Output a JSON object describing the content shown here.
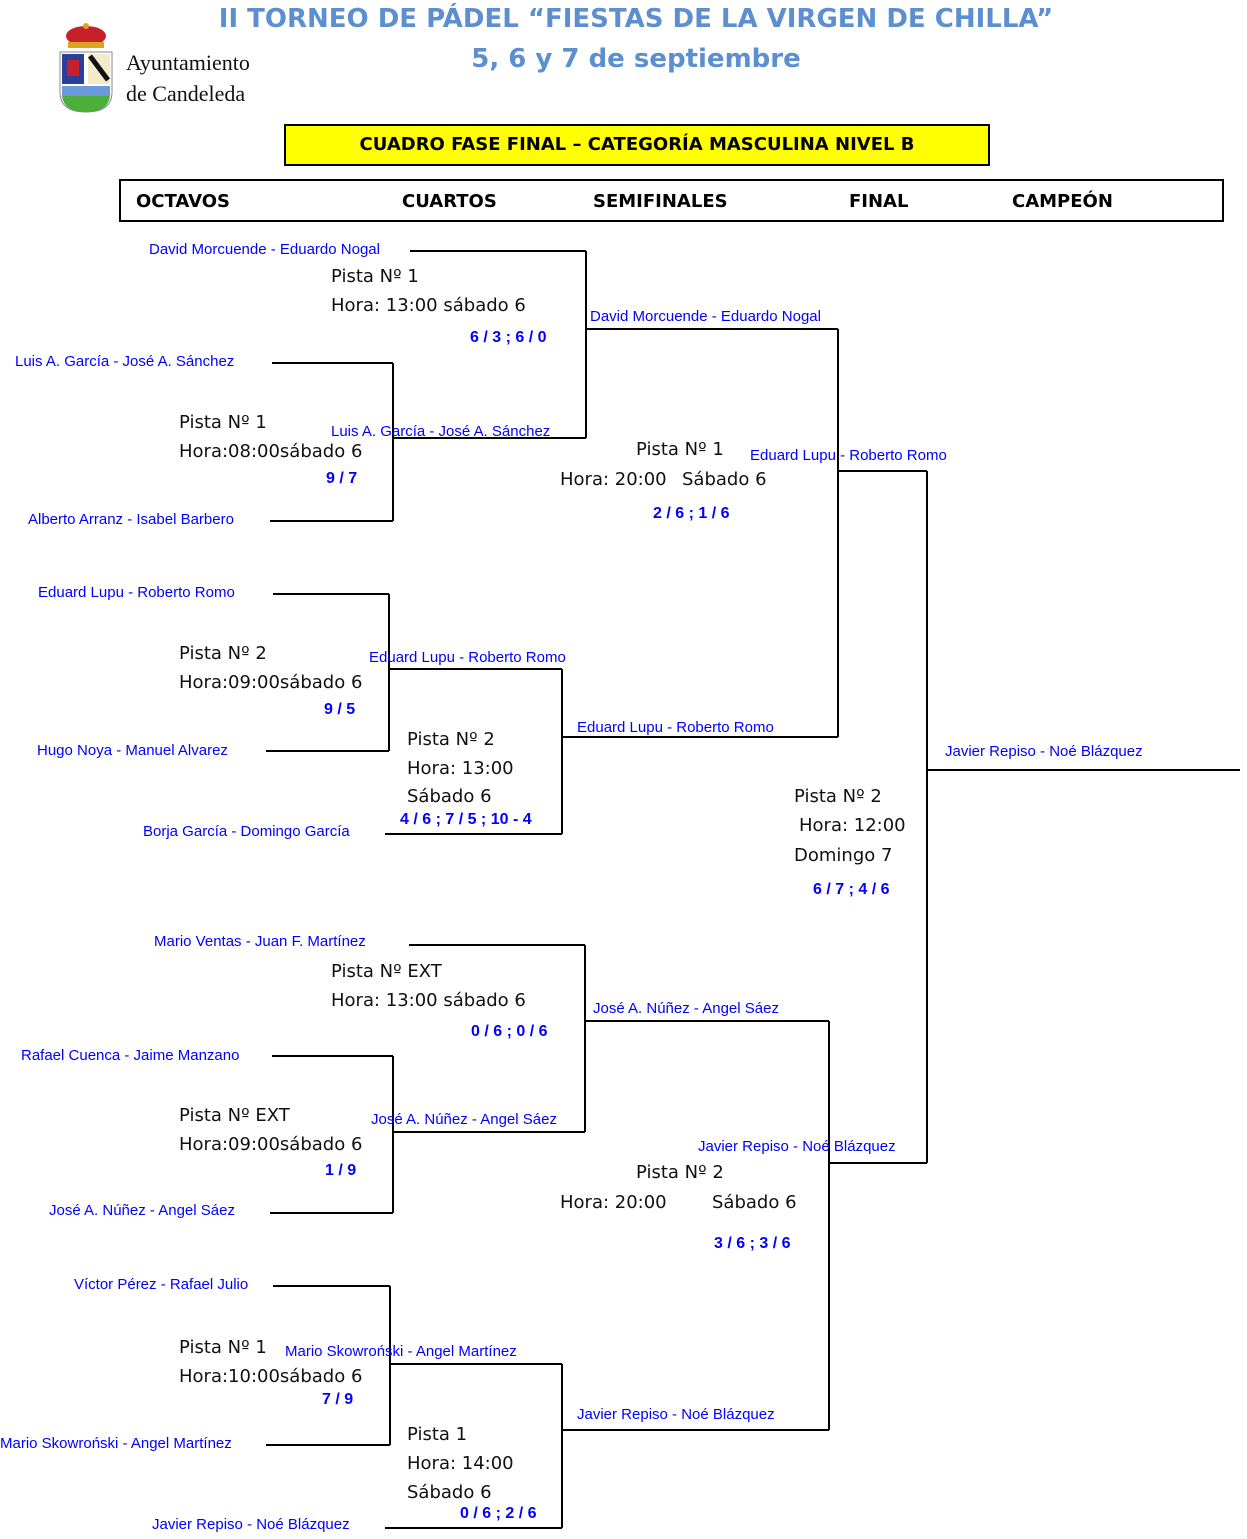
{
  "header": {
    "title": "II TORNEO DE PÁDEL “FIESTAS DE LA VIRGEN DE CHILLA”",
    "subtitle": "5, 6 y 7 de septiembre",
    "org_line1": "Ayuntamiento",
    "org_line2": "de Candeleda",
    "banner": "CUADRO FASE FINAL – CATEGORÍA MASCULINA NIVEL B",
    "title_color": "#5b8fcf",
    "banner_color": "#ffff00"
  },
  "rounds": [
    "OCTAVOS",
    "CUARTOS",
    "SEMIFINALES",
    "FINAL",
    "CAMPEÓN"
  ],
  "octavos": [
    {
      "teams": [
        "Luis A. García - José A. Sánchez",
        "Alberto Arranz - Isabel Barbero"
      ],
      "court": "Pista Nº 1",
      "time": "Hora:08:00sábado 6",
      "score": "9 / 7",
      "winner": "Luis A. García - José A. Sánchez"
    },
    {
      "teams": [
        "Eduard Lupu - Roberto Romo",
        "Hugo Noya - Manuel Alvarez"
      ],
      "court": "Pista Nº 2",
      "time": "Hora:09:00sábado 6",
      "score": "9 / 5",
      "winner": "Eduard Lupu - Roberto Romo"
    },
    {
      "teams": [
        "Rafael Cuenca - Jaime Manzano",
        "José A. Núñez - Angel Sáez"
      ],
      "court": "Pista Nº EXT",
      "time": "Hora:09:00sábado 6",
      "score": "1 / 9",
      "winner": "José A. Núñez - Angel Sáez"
    },
    {
      "teams": [
        "Víctor Pérez - Rafael Julio",
        "Mario Skowroński - Angel Martínez"
      ],
      "court": "Pista Nº 1",
      "time": "Hora:10:00sábado 6",
      "score": "7 / 9",
      "winner": "Mario Skowroński - Angel Martínez"
    }
  ],
  "cuartos": [
    {
      "seeded": "David Morcuende - Eduardo Nogal",
      "court": "Pista Nº 1",
      "time": "Hora: 13:00 sábado 6",
      "score": "6 / 3 ; 6 / 0",
      "winner": "David Morcuende - Eduardo Nogal"
    },
    {
      "seeded": "Borja García - Domingo García",
      "court": "Pista Nº 2",
      "time": "Hora: 13:00",
      "day": "Sábado 6",
      "score": "4 / 6 ; 7 / 5 ; 10 - 4",
      "winner": "Eduard Lupu - Roberto Romo"
    },
    {
      "seeded": "Mario Ventas - Juan F. Martínez",
      "court": "Pista Nº EXT",
      "time": "Hora: 13:00 sábado 6",
      "score": "0 / 6 ; 0 / 6",
      "winner": "José A. Núñez - Angel Sáez"
    },
    {
      "seeded": "Javier Repiso - Noé Blázquez",
      "court": "Pista 1",
      "time": "Hora: 14:00",
      "day": "Sábado 6",
      "score": "0 / 6 ; 2 / 6",
      "winner": "Javier Repiso - Noé Blázquez"
    }
  ],
  "semis": [
    {
      "court": "Pista Nº 1",
      "time": "Hora: 20:00",
      "day": "Sábado 6",
      "score": "2 / 6 ; 1 / 6",
      "winner": "Eduard Lupu - Roberto Romo"
    },
    {
      "court": "Pista Nº 2",
      "time": "Hora: 20:00",
      "day": "Sábado 6",
      "score": "3 / 6 ; 3 / 6",
      "winner": "Javier Repiso - Noé Blázquez"
    }
  ],
  "final": {
    "court": "Pista Nº 2",
    "time": "Hora: 12:00",
    "day": "Domingo 7",
    "score": "6 / 7 ; 4 / 6",
    "champion": "Javier Repiso - Noé Blázquez"
  },
  "colors": {
    "team_names": "#0000ff",
    "lines": "#000000"
  }
}
